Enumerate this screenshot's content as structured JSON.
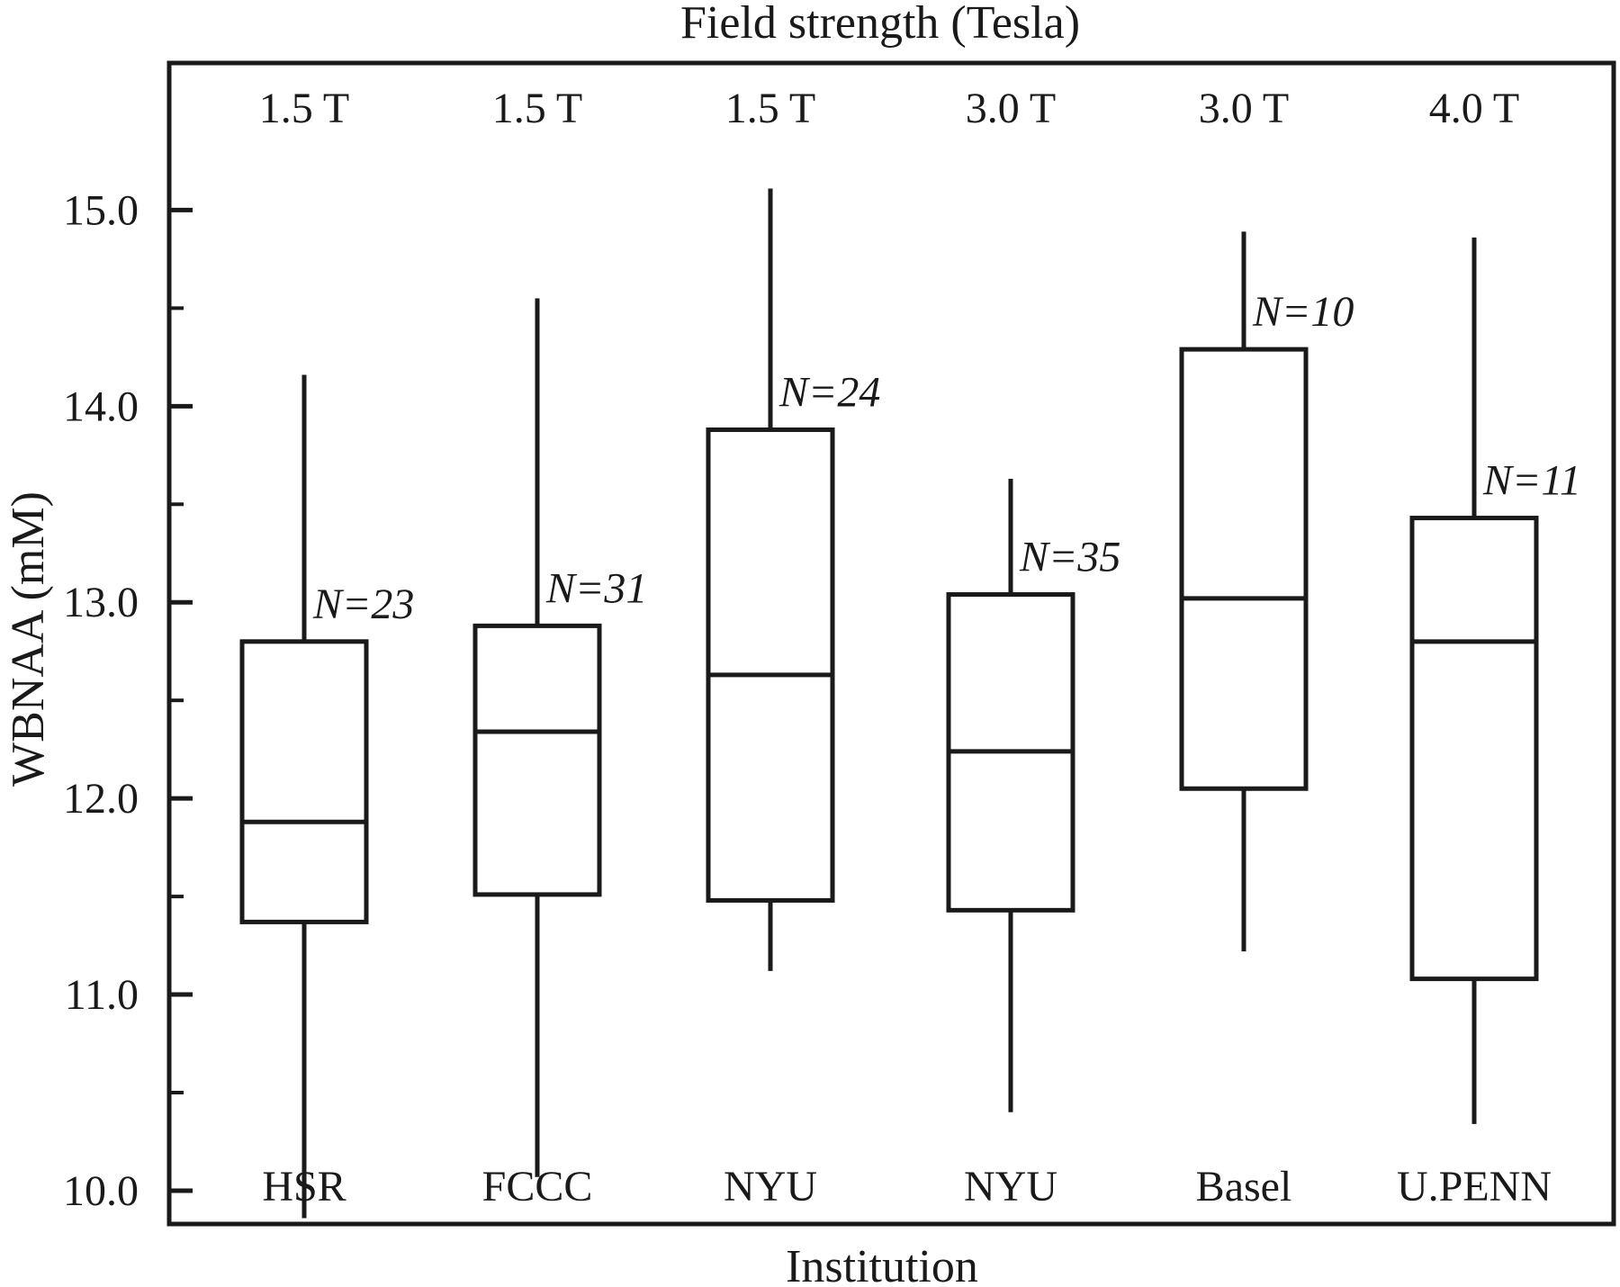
{
  "chart_data": {
    "type": "box",
    "top_title": "Field strength (Tesla)",
    "xlabel": "Institution",
    "ylabel": "WBNAA (mM)",
    "ylim": [
      9.83,
      15.75
    ],
    "yticks_major": [
      10.0,
      11.0,
      12.0,
      13.0,
      14.0,
      15.0
    ],
    "yticks_major_labels": [
      "10.0",
      "11.0",
      "12.0",
      "13.0",
      "14.0",
      "15.0"
    ],
    "yticks_minor": [
      10.5,
      11.5,
      12.5,
      13.5,
      14.5
    ],
    "grid": false,
    "categories": [
      "HSR",
      "FCCC",
      "NYU",
      "NYU",
      "Basel",
      "U.PENN"
    ],
    "field_strengths": [
      "1.5 T",
      "1.5 T",
      "1.5 T",
      "3.0 T",
      "3.0 T",
      "4.0 T"
    ],
    "n_labels": [
      "N=23",
      "N=31",
      "N=24",
      "N=35",
      "N=10",
      "N=11"
    ],
    "boxes": [
      {
        "whisker_low": 9.86,
        "q1": 11.37,
        "median": 11.88,
        "q3": 12.8,
        "whisker_high": 14.16
      },
      {
        "whisker_low": 10.07,
        "q1": 11.51,
        "median": 12.34,
        "q3": 12.88,
        "whisker_high": 14.55
      },
      {
        "whisker_low": 11.12,
        "q1": 11.48,
        "median": 12.63,
        "q3": 13.88,
        "whisker_high": 15.11
      },
      {
        "whisker_low": 10.4,
        "q1": 11.43,
        "median": 12.24,
        "q3": 13.04,
        "whisker_high": 13.63
      },
      {
        "whisker_low": 11.22,
        "q1": 12.05,
        "median": 13.02,
        "q3": 14.29,
        "whisker_high": 14.89
      },
      {
        "whisker_low": 10.34,
        "q1": 11.08,
        "median": 12.8,
        "q3": 13.43,
        "whisker_high": 14.86
      }
    ]
  }
}
